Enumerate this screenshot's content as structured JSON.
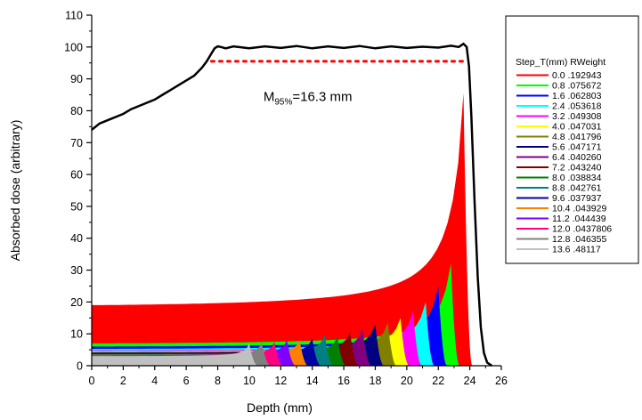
{
  "chart_data": {
    "type": "area",
    "xlabel": "Depth (mm)",
    "ylabel": "Absorbed dose (arbitrary)",
    "xlim": [
      0,
      26
    ],
    "ylim": [
      0,
      110
    ],
    "xticks": [
      0,
      2,
      4,
      6,
      8,
      10,
      12,
      14,
      16,
      18,
      20,
      22,
      24,
      26
    ],
    "yticks": [
      0,
      10,
      20,
      30,
      40,
      50,
      60,
      70,
      80,
      90,
      100,
      110
    ],
    "annotation": {
      "main": "M",
      "subscript": "95%",
      "suffix": "=16.3 mm",
      "x": 10.9,
      "y": 83
    },
    "reference_line": {
      "y": 95.5,
      "x_start": 7.6,
      "x_end": 23.6,
      "color": "#ff0000",
      "style": "dotted"
    },
    "sobp_curve": {
      "color": "#000000",
      "x": [
        0,
        0.5,
        1,
        1.5,
        2,
        2.5,
        3,
        3.5,
        4,
        4.5,
        5,
        5.5,
        6,
        6.5,
        7,
        7.3,
        7.6,
        7.8,
        8.0,
        8.2,
        8.5,
        9,
        10,
        11,
        12,
        13,
        14,
        15,
        16,
        17,
        18,
        19,
        20,
        21,
        22,
        22.8,
        23.3,
        23.6,
        23.8,
        23.95,
        24.1,
        24.3,
        24.5,
        24.7,
        24.9,
        25.1,
        25.4
      ],
      "y": [
        74,
        76,
        77,
        78,
        79,
        80.5,
        81.5,
        82.5,
        83.5,
        85,
        86.5,
        88,
        89.5,
        91,
        93.5,
        95.5,
        98,
        99.6,
        100.2,
        100.0,
        99.6,
        100.2,
        99.6,
        100.2,
        99.7,
        100.3,
        99.6,
        100.2,
        99.7,
        100.3,
        99.6,
        100.2,
        99.7,
        100.1,
        99.8,
        100.4,
        100.0,
        101,
        100,
        94,
        78,
        52,
        28,
        12,
        4,
        1,
        0
      ]
    },
    "legend": {
      "header": "Step_T(mm)  RWeight",
      "position": "right"
    },
    "series": [
      {
        "name": "0.0 .192943",
        "step": 0.0,
        "weight": 0.192943,
        "color": "#ff0000"
      },
      {
        "name": "0.8 .075672",
        "step": 0.8,
        "weight": 0.075672,
        "color": "#00ff00"
      },
      {
        "name": "1.6 .062803",
        "step": 1.6,
        "weight": 0.062803,
        "color": "#0000ff"
      },
      {
        "name": "2.4 .053618",
        "step": 2.4,
        "weight": 0.053618,
        "color": "#00ffff"
      },
      {
        "name": "3.2 .049308",
        "step": 3.2,
        "weight": 0.049308,
        "color": "#ff00ff"
      },
      {
        "name": "4.0 .047031",
        "step": 4.0,
        "weight": 0.047031,
        "color": "#ffff00"
      },
      {
        "name": "4.8 .041796",
        "step": 4.8,
        "weight": 0.041796,
        "color": "#808000"
      },
      {
        "name": "5.6 .047171",
        "step": 5.6,
        "weight": 0.047171,
        "color": "#000080"
      },
      {
        "name": "6.4 .040260",
        "step": 6.4,
        "weight": 0.04026,
        "color": "#800080"
      },
      {
        "name": "7.2 .043240",
        "step": 7.2,
        "weight": 0.04324,
        "color": "#800000"
      },
      {
        "name": "8.0 .038834",
        "step": 8.0,
        "weight": 0.038834,
        "color": "#008000"
      },
      {
        "name": "8.8 .042761",
        "step": 8.8,
        "weight": 0.042761,
        "color": "#008080"
      },
      {
        "name": "9.6 .037937",
        "step": 9.6,
        "weight": 0.037937,
        "color": "#0000a0"
      },
      {
        "name": "10.4 .043929",
        "step": 10.4,
        "weight": 0.043929,
        "color": "#ff8000"
      },
      {
        "name": "11.2 .044439",
        "step": 11.2,
        "weight": 0.044439,
        "color": "#8000ff"
      },
      {
        "name": "12.0 .0437806",
        "step": 12.0,
        "weight": 0.0437806,
        "color": "#ff0080"
      },
      {
        "name": "12.8 .046355",
        "step": 12.8,
        "weight": 0.046355,
        "color": "#808080"
      },
      {
        "name": "13.6 .48117",
        "step": 13.6,
        "weight": 0.48117,
        "color": "#c0c0c0"
      }
    ],
    "peak_values": [
      85.5,
      32,
      25,
      20,
      17,
      15,
      13.5,
      13,
      11.5,
      10.5,
      9,
      9.5,
      8.5,
      8,
      8,
      7.5,
      7.5,
      7
    ],
    "entrance_values": [
      19,
      7,
      6,
      5.3,
      4.8,
      4.5,
      4.1,
      4.2,
      3.8,
      3.9,
      3.5,
      3.6,
      3.3,
      3.4,
      3.3,
      3.2,
      3.1,
      3.0
    ],
    "range_mm": 23.6,
    "grid": false
  }
}
